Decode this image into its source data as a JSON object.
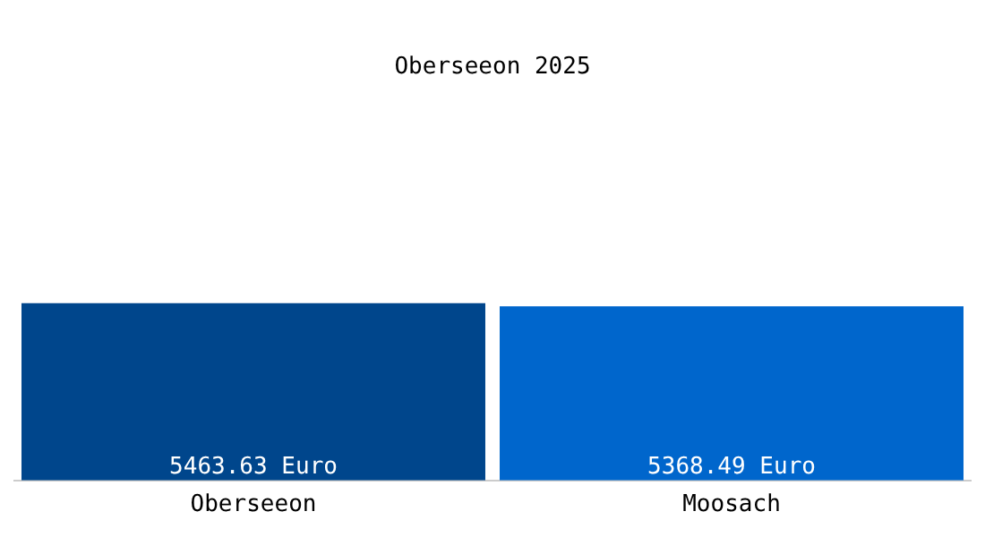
{
  "chart_data": {
    "type": "bar",
    "title": "Oberseeon 2025",
    "categories": [
      "Oberseeon",
      "Moosach"
    ],
    "values": [
      5463.63,
      5368.49
    ],
    "colors": [
      "#00468c",
      "#0066cc"
    ],
    "value_labels": [
      "5463.63 Euro",
      "5368.49 Euro"
    ],
    "grid": false,
    "legend": false
  }
}
